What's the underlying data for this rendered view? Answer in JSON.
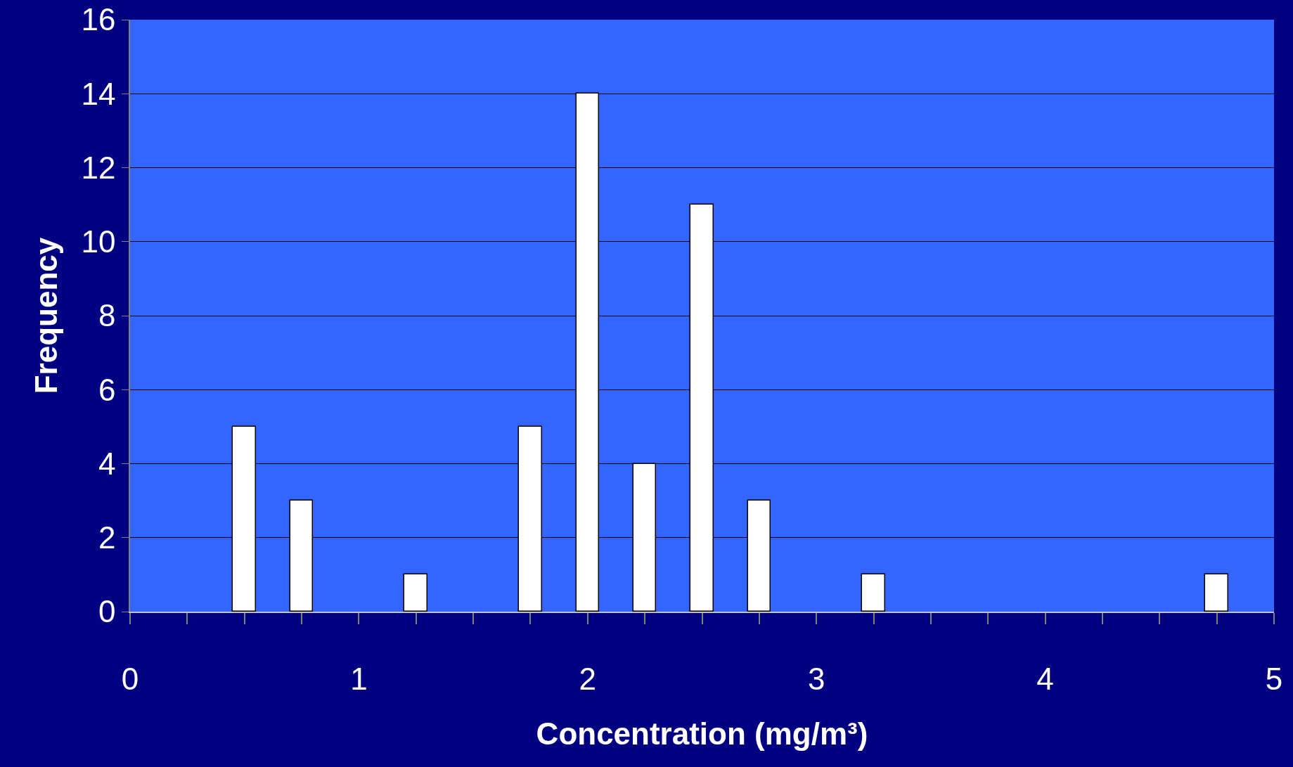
{
  "chart_data": {
    "type": "bar",
    "xlabel": "Concentration (mg/m³)",
    "ylabel": "Frequency",
    "x": [
      0.5,
      0.75,
      1.25,
      1.75,
      2,
      2.25,
      2.5,
      2.75,
      3.25,
      4.75
    ],
    "values": [
      5,
      3,
      1,
      5,
      14,
      4,
      11,
      3,
      1,
      1
    ],
    "color": "#ffffff",
    "xlim": [
      0,
      5
    ],
    "xticks": [
      0,
      {
        "value": 0.25,
        "label": null
      },
      {
        "value": 0.5,
        "label": null
      },
      {
        "value": 0.75,
        "label": null
      },
      1,
      {
        "value": 1.25,
        "label": null
      },
      {
        "value": 1.5,
        "label": null
      },
      {
        "value": 1.75,
        "label": null
      },
      2,
      {
        "value": 2.25,
        "label": null
      },
      {
        "value": 2.5,
        "label": null
      },
      {
        "value": 2.75,
        "label": null
      },
      3,
      {
        "value": 3.25,
        "label": null
      },
      {
        "value": 3.5,
        "label": null
      },
      {
        "value": 3.75,
        "label": null
      },
      4,
      {
        "value": 4.25,
        "label": null
      },
      {
        "value": 4.5,
        "label": null
      },
      {
        "value": 4.75,
        "label": null
      },
      5
    ],
    "ylim": [
      0,
      16
    ],
    "yticks": [
      0,
      2,
      4,
      6,
      8,
      10,
      12,
      14,
      16
    ],
    "grid": "y",
    "legend": false
  }
}
